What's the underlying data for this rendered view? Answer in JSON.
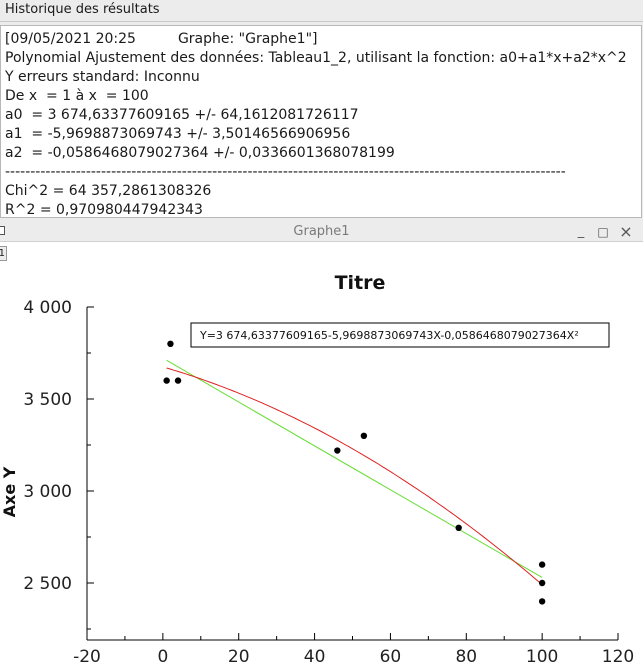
{
  "results": {
    "header": "Historique des résultats",
    "timestamp": "[09/05/2021 20:25",
    "graph_ref": "Graphe: \"Graphe1\"]",
    "lines": [
      "Polynomial Ajustement des données: Tableau1_2, utilisant la fonction: a0+a1*x+a2*x^2",
      "Y erreurs standard: Inconnu",
      "De x  = 1 à x  = 100",
      "a0  = 3 674,63377609165 +/- 64,1612081726117",
      "a1  = -5,9698873069743 +/- 3,50146566906956",
      "a2  = -0,0586468079027364 +/- 0,0336601368078199",
      "---------------------------------------------------------------------------------------------------------------",
      "Chi^2 = 64 357,2861308326",
      "R^2 = 0,970980447942343"
    ]
  },
  "graph_window": {
    "title": "Graphe1",
    "minimize_glyph": "_",
    "maximize_glyph": "□",
    "close_glyph": "×",
    "layer_label": "1"
  },
  "chart_data": {
    "type": "scatter",
    "title": "Titre",
    "xlabel": "",
    "ylabel": "Axe Y",
    "xlim": [
      -20,
      120
    ],
    "ylim": [
      2250,
      4000
    ],
    "x_ticks": [
      -20,
      0,
      20,
      40,
      60,
      80,
      100,
      120
    ],
    "x_tick_labels": [
      "-20",
      "0",
      "20",
      "40",
      "60",
      "80",
      "100",
      "120"
    ],
    "y_ticks": [
      2500,
      3000,
      3500,
      4000
    ],
    "y_tick_labels": [
      "2 500",
      "3 000",
      "3 500",
      "4 000"
    ],
    "grid": false,
    "legend_text": "Y=3 674,63377609165-5,9698873069743X-0,0586468079027364X²",
    "legend_position": "top-right",
    "points": {
      "x": [
        1,
        2,
        4,
        46,
        53,
        78,
        100,
        100,
        100
      ],
      "y": [
        3600,
        3800,
        3600,
        3220,
        3300,
        2800,
        2600,
        2500,
        2400
      ]
    },
    "fit_curve": {
      "a0": 3674.63377609165,
      "a1": -5.9698873069743,
      "a2": -0.0586468079027364,
      "from": 1,
      "to": 100
    },
    "linear_fit": {
      "y_at_1": 3710,
      "y_at_100": 2530
    },
    "colors": {
      "points": "#000000",
      "fit_curve": "#e02020",
      "linear_fit": "#66dd33"
    }
  }
}
